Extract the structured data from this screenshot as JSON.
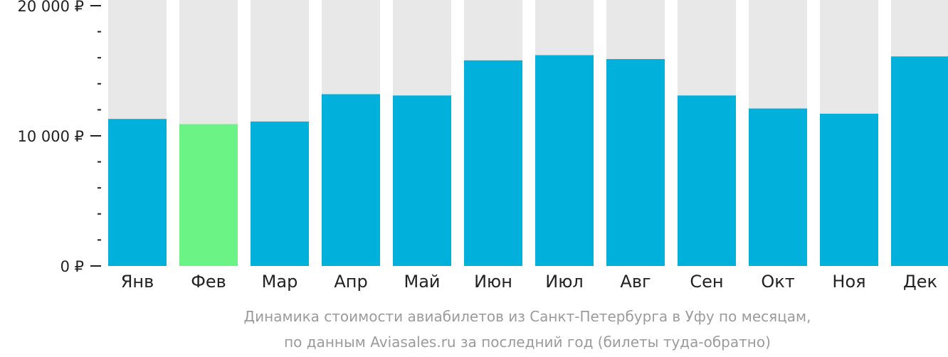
{
  "chart_data": {
    "type": "bar",
    "categories": [
      "Янв",
      "Фев",
      "Мар",
      "Апр",
      "Май",
      "Июн",
      "Июл",
      "Авг",
      "Сен",
      "Окт",
      "Ноя",
      "Дек"
    ],
    "values": [
      11300,
      10900,
      11100,
      13200,
      13100,
      15800,
      16200,
      15900,
      13100,
      12100,
      11700,
      16100
    ],
    "highlight_index": 1,
    "ylim": [
      0,
      20000
    ],
    "y_ticks": [
      {
        "value": 0,
        "label": "0 ₽"
      },
      {
        "value": 10000,
        "label": "10 000 ₽"
      },
      {
        "value": 20000,
        "label": "20 000 ₽"
      }
    ],
    "y_minor_step": 2000,
    "caption_lines": [
      "Динамика стоимости авиабилетов из Санкт-Петербурга в Уфу по месяцам,",
      "по данным Aviasales.ru за последний год (билеты туда-обратно)"
    ],
    "grid": false,
    "legend": "none",
    "colors": {
      "bar": "#02b0dc",
      "highlight": "#6bf386",
      "track": "#e8e8e8",
      "axis": "#222222",
      "caption": "#9b9b9b"
    }
  }
}
